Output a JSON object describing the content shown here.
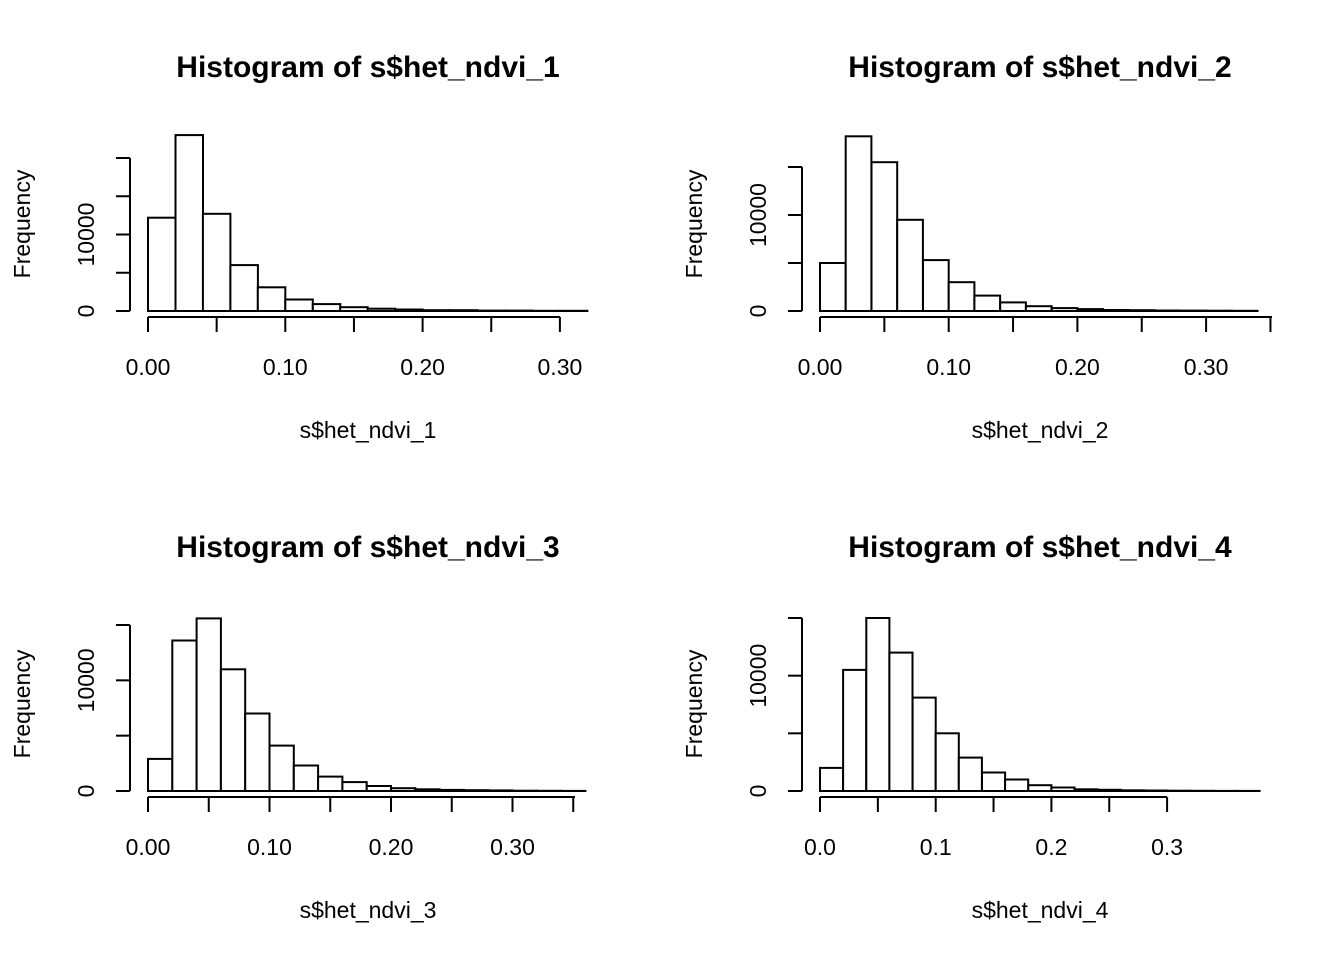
{
  "chart_data": [
    {
      "type": "bar",
      "title": "Histogram of s$het_ndvi_1",
      "xlabel": "s$het_ndvi_1",
      "ylabel": "Frequency",
      "bin_width": 0.02,
      "bin_start": 0.0,
      "values": [
        12200,
        23000,
        12700,
        6000,
        3100,
        1500,
        900,
        500,
        300,
        200,
        100,
        100,
        50,
        50,
        30,
        20
      ],
      "xlim": [
        0.0,
        0.32
      ],
      "ylim": [
        0,
        20000
      ],
      "x_ticks": [
        0.0,
        0.1,
        0.2,
        0.3
      ],
      "x_tick_labels": [
        "0.00",
        "0.10",
        "0.20",
        "0.30"
      ],
      "y_ticks": [
        0,
        5000,
        10000,
        15000,
        20000
      ],
      "y_tick_labels": [
        "0",
        "",
        "10000",
        "",
        ""
      ]
    },
    {
      "type": "bar",
      "title": "Histogram of s$het_ndvi_2",
      "xlabel": "s$het_ndvi_2",
      "ylabel": "Frequency",
      "bin_width": 0.02,
      "bin_start": 0.0,
      "values": [
        5000,
        18200,
        15500,
        9500,
        5300,
        3000,
        1600,
        900,
        500,
        300,
        200,
        100,
        80,
        50,
        40,
        30,
        20
      ],
      "xlim": [
        0.0,
        0.34
      ],
      "ylim": [
        0,
        15000
      ],
      "x_ticks": [
        0.0,
        0.1,
        0.2,
        0.3
      ],
      "x_tick_labels": [
        "0.00",
        "0.10",
        "0.20",
        "0.30"
      ],
      "y_ticks": [
        0,
        5000,
        10000,
        15000
      ],
      "y_tick_labels": [
        "0",
        "",
        "10000",
        ""
      ]
    },
    {
      "type": "bar",
      "title": "Histogram of s$het_ndvi_3",
      "xlabel": "s$het_ndvi_3",
      "ylabel": "Frequency",
      "bin_width": 0.02,
      "bin_start": 0.0,
      "values": [
        2900,
        13600,
        15600,
        11000,
        7000,
        4100,
        2300,
        1300,
        800,
        450,
        250,
        150,
        100,
        70,
        50,
        30,
        20,
        10
      ],
      "xlim": [
        0.0,
        0.36
      ],
      "ylim": [
        0,
        15000
      ],
      "x_ticks": [
        0.0,
        0.1,
        0.2,
        0.3
      ],
      "x_tick_labels": [
        "0.00",
        "0.10",
        "0.20",
        "0.30"
      ],
      "y_ticks": [
        0,
        5000,
        10000,
        15000
      ],
      "y_tick_labels": [
        "0",
        "",
        "10000",
        ""
      ]
    },
    {
      "type": "bar",
      "title": "Histogram of s$het_ndvi_4",
      "xlabel": "s$het_ndvi_4",
      "ylabel": "Frequency",
      "bin_width": 0.02,
      "bin_start": 0.0,
      "values": [
        2000,
        10500,
        15000,
        12000,
        8100,
        5000,
        2900,
        1600,
        1000,
        500,
        300,
        150,
        100,
        60,
        40,
        30,
        20,
        10,
        10
      ],
      "xlim": [
        0.0,
        0.38
      ],
      "ylim": [
        0,
        15000
      ],
      "x_ticks": [
        0.0,
        0.1,
        0.2,
        0.3
      ],
      "x_tick_labels": [
        "0.0",
        "0.1",
        "0.2",
        "0.3"
      ],
      "y_ticks": [
        0,
        5000,
        10000,
        15000
      ],
      "y_tick_labels": [
        "0",
        "",
        "10000",
        ""
      ]
    }
  ]
}
